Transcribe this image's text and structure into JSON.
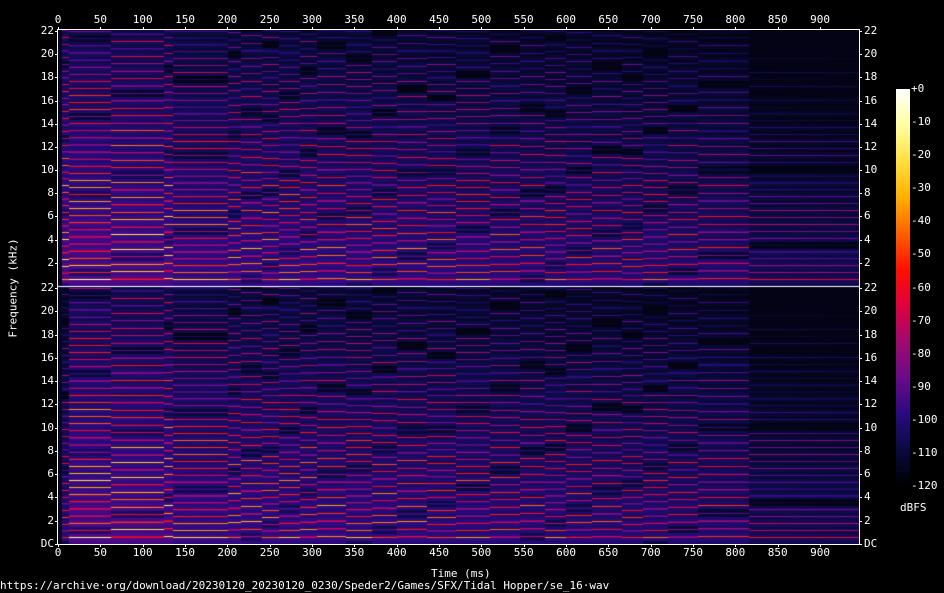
{
  "chart_data": {
    "type": "heatmap",
    "title": "",
    "xlabel": "Time (ms)",
    "ylabel": "Frequency (kHz)",
    "xlim": [
      0,
      945
    ],
    "ylim": [
      0,
      22
    ],
    "x_ticks": [
      "0",
      "50",
      "100",
      "150",
      "200",
      "250",
      "300",
      "350",
      "400",
      "450",
      "500",
      "550",
      "600",
      "650",
      "700",
      "750",
      "800",
      "850",
      "900"
    ],
    "channels": [
      {
        "y_ticks": [
          "2",
          "4",
          "6",
          "8",
          "10",
          "12",
          "14",
          "16",
          "18",
          "20",
          "22"
        ]
      },
      {
        "y_ticks": [
          "DC",
          "2",
          "4",
          "6",
          "8",
          "10",
          "12",
          "14",
          "16",
          "18",
          "20",
          "22"
        ]
      }
    ],
    "colorbar": {
      "label": "dBFS",
      "range": [
        -120,
        0
      ],
      "ticks": [
        "+0",
        "-10",
        "-20",
        "-30",
        "-40",
        "-50",
        "-60",
        "-70",
        "-80",
        "-90",
        "-100",
        "-110",
        "-120"
      ],
      "colors": [
        "#000000",
        "#0a0a40",
        "#2a0a80",
        "#6a0a8a",
        "#a00a70",
        "#e00040",
        "#ff1000",
        "#ff6000",
        "#ffb000",
        "#ffe040",
        "#ffffa0",
        "#ffffff"
      ]
    },
    "grid": false
  },
  "footer": {
    "source": "https://archive·org/download/20230120_20230120_0230/Speder2/Games/SFX/Tidal Hopper/se_16·wav"
  }
}
